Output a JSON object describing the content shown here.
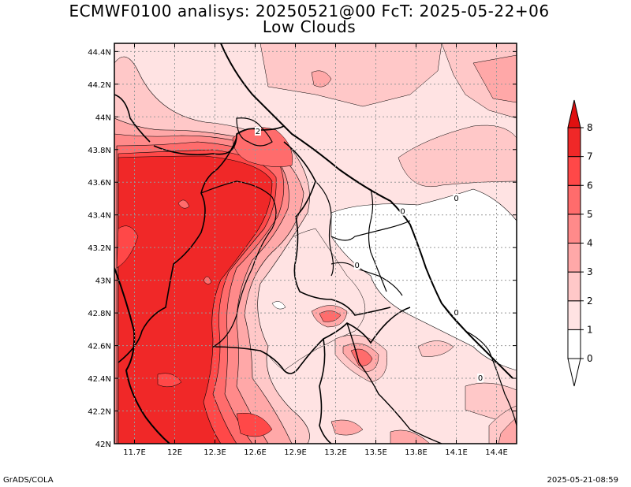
{
  "title": "ECMWF0100 analisys: 20250521@00 FcT: 2025-05-22+06",
  "subtitle": "Low Clouds",
  "footer_left": "GrADS/COLA",
  "footer_right": "2025-05-21-08:59",
  "chart_data": {
    "type": "heatmap",
    "title": "ECMWF0100 analisys: 20250521@00 FcT: 2025-05-22+06",
    "subtitle": "Low Clouds",
    "x_ticks": [
      "11.7E",
      "12E",
      "12.3E",
      "12.6E",
      "12.9E",
      "13.2E",
      "13.5E",
      "13.8E",
      "14.1E",
      "14.4E"
    ],
    "y_ticks": [
      "42N",
      "42.2N",
      "42.4N",
      "42.6N",
      "42.8N",
      "43N",
      "43.2N",
      "43.4N",
      "43.6N",
      "43.8N",
      "44N",
      "44.2N",
      "44.4N"
    ],
    "xlim": [
      11.55,
      14.55
    ],
    "ylim": [
      42.0,
      44.45
    ],
    "grid": true,
    "colorbar": {
      "levels": [
        "0",
        "1",
        "2",
        "3",
        "4",
        "5",
        "6",
        "7",
        "8"
      ],
      "colors": [
        "#ffffff",
        "#ffe3e3",
        "#ffc8c8",
        "#ffa8a8",
        "#ff8a8a",
        "#ff6c6c",
        "#ff4848",
        "#f02828",
        "#e01010"
      ]
    },
    "contour_labels": [
      {
        "text": "0",
        "lon": 13.7,
        "lat": 43.42
      },
      {
        "text": "0",
        "lon": 14.1,
        "lat": 43.5
      },
      {
        "text": "0",
        "lon": 13.36,
        "lat": 43.09
      },
      {
        "text": "0",
        "lon": 14.1,
        "lat": 42.8
      },
      {
        "text": "0",
        "lon": 14.28,
        "lat": 42.4
      },
      {
        "text": "2",
        "lon": 12.62,
        "lat": 43.91
      }
    ]
  }
}
